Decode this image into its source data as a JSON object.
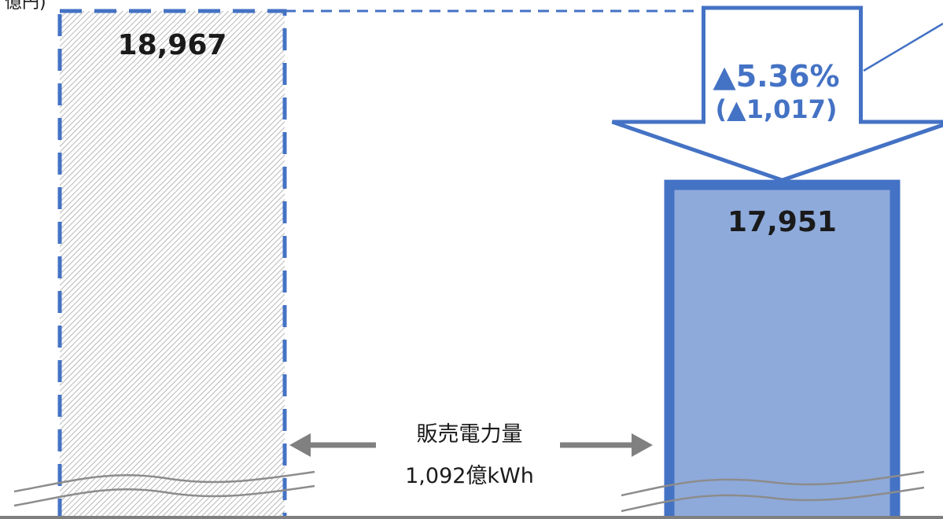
{
  "chart_data": {
    "type": "bar",
    "categories": [
      "",
      ""
    ],
    "values": [
      18967,
      17951
    ],
    "value_labels": [
      "18,967",
      "17,951"
    ],
    "unit_label": "億円)",
    "axis_break": true,
    "change": {
      "percent_label": "▲5.36%",
      "amount_label": "(▲1,017)"
    },
    "annotation": {
      "line1": "販売電力量",
      "line2": "1,092億kWh"
    },
    "colors": {
      "accent": "#4472c4",
      "bar_fill": "#8eaadb",
      "hatch": "#a6a6a6",
      "arrow_gray": "#808080",
      "axis": "#7f7f7f"
    }
  }
}
